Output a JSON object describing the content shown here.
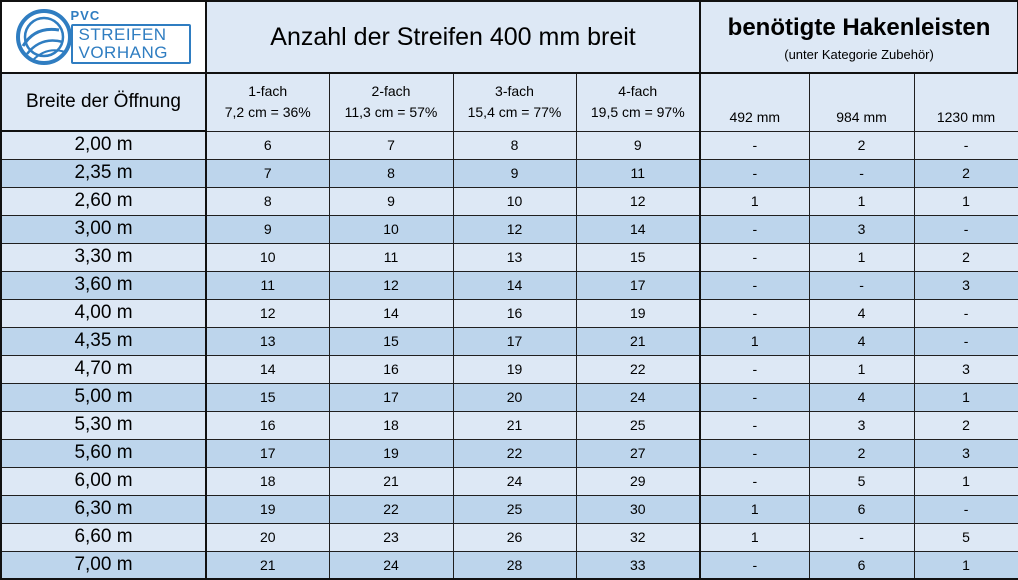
{
  "logo": {
    "small_text": "PVC",
    "line1": "STREIFEN",
    "line2": "VORHANG",
    "brand_color": "#2f7dc1"
  },
  "header": {
    "strips_title": "Anzahl der Streifen 400 mm breit",
    "hooks_title": "benötigte Hakenleisten",
    "hooks_subtitle": "(unter Kategorie Zubehör)",
    "width_label": "Breite der Öffnung"
  },
  "strip_columns": [
    {
      "name": "1-fach",
      "spec": "7,2 cm = 36%"
    },
    {
      "name": "2-fach",
      "spec": "11,3 cm = 57%"
    },
    {
      "name": "3-fach",
      "spec": "15,4 cm = 77%"
    },
    {
      "name": "4-fach",
      "spec": "19,5 cm = 97%"
    }
  ],
  "hook_columns": [
    "492 mm",
    "984 mm",
    "1230 mm"
  ],
  "rows": [
    {
      "width": "2,00 m",
      "strips": [
        "6",
        "7",
        "8",
        "9"
      ],
      "hooks": [
        "-",
        "2",
        "-"
      ]
    },
    {
      "width": "2,35 m",
      "strips": [
        "7",
        "8",
        "9",
        "11"
      ],
      "hooks": [
        "-",
        "-",
        "2"
      ]
    },
    {
      "width": "2,60 m",
      "strips": [
        "8",
        "9",
        "10",
        "12"
      ],
      "hooks": [
        "1",
        "1",
        "1"
      ]
    },
    {
      "width": "3,00 m",
      "strips": [
        "9",
        "10",
        "12",
        "14"
      ],
      "hooks": [
        "-",
        "3",
        "-"
      ]
    },
    {
      "width": "3,30 m",
      "strips": [
        "10",
        "11",
        "13",
        "15"
      ],
      "hooks": [
        "-",
        "1",
        "2"
      ]
    },
    {
      "width": "3,60 m",
      "strips": [
        "11",
        "12",
        "14",
        "17"
      ],
      "hooks": [
        "-",
        "-",
        "3"
      ]
    },
    {
      "width": "4,00 m",
      "strips": [
        "12",
        "14",
        "16",
        "19"
      ],
      "hooks": [
        "-",
        "4",
        "-"
      ]
    },
    {
      "width": "4,35 m",
      "strips": [
        "13",
        "15",
        "17",
        "21"
      ],
      "hooks": [
        "1",
        "4",
        "-"
      ]
    },
    {
      "width": "4,70 m",
      "strips": [
        "14",
        "16",
        "19",
        "22"
      ],
      "hooks": [
        "-",
        "1",
        "3"
      ]
    },
    {
      "width": "5,00 m",
      "strips": [
        "15",
        "17",
        "20",
        "24"
      ],
      "hooks": [
        "-",
        "4",
        "1"
      ]
    },
    {
      "width": "5,30 m",
      "strips": [
        "16",
        "18",
        "21",
        "25"
      ],
      "hooks": [
        "-",
        "3",
        "2"
      ]
    },
    {
      "width": "5,60 m",
      "strips": [
        "17",
        "19",
        "22",
        "27"
      ],
      "hooks": [
        "-",
        "2",
        "3"
      ]
    },
    {
      "width": "6,00 m",
      "strips": [
        "18",
        "21",
        "24",
        "29"
      ],
      "hooks": [
        "-",
        "5",
        "1"
      ]
    },
    {
      "width": "6,30 m",
      "strips": [
        "19",
        "22",
        "25",
        "30"
      ],
      "hooks": [
        "1",
        "6",
        "-"
      ]
    },
    {
      "width": "6,60 m",
      "strips": [
        "20",
        "23",
        "26",
        "32"
      ],
      "hooks": [
        "1",
        "-",
        "5"
      ]
    },
    {
      "width": "7,00 m",
      "strips": [
        "21",
        "24",
        "28",
        "33"
      ],
      "hooks": [
        "-",
        "6",
        "1"
      ]
    }
  ],
  "colors": {
    "header_bg": "#dde8f5",
    "row_light": "#dde8f5",
    "row_dark": "#bdd5ec",
    "border": "#1f1f1f"
  }
}
